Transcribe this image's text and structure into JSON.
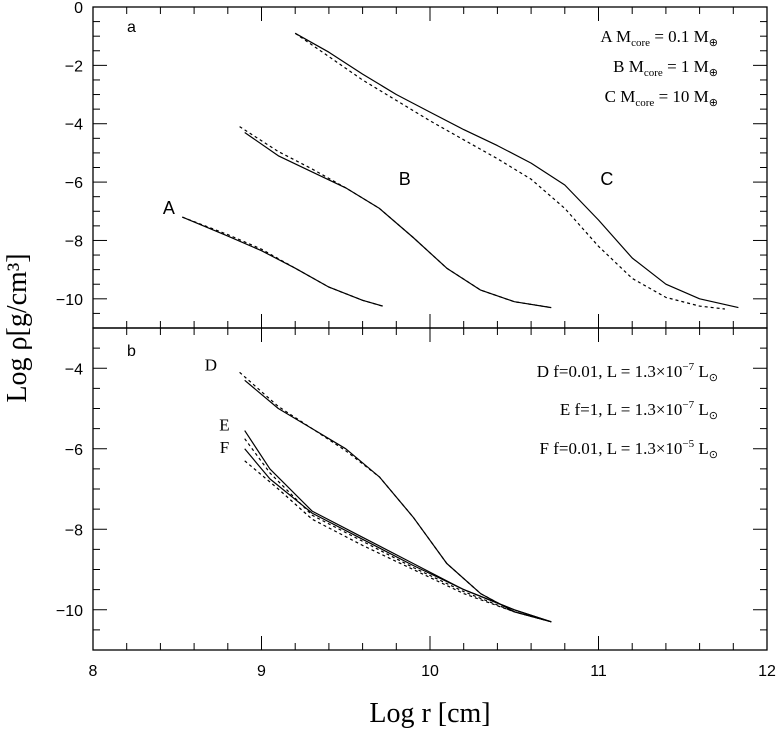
{
  "chart_data": [
    {
      "panel": "a",
      "type": "line",
      "xlabel": "Log r [cm]",
      "ylabel": "Log ρ[g/cm³]",
      "xlim": [
        8,
        12
      ],
      "ylim": [
        -11,
        0
      ],
      "xticks": [
        "8",
        "9",
        "10",
        "11",
        "12"
      ],
      "yticks": [
        "0",
        "−2",
        "−4",
        "−6",
        "−8",
        "−10"
      ],
      "legend_lines": [
        {
          "letter": "A",
          "name": "M",
          "sub": "core",
          "rest": "= 0.1 M",
          "sym": "⊕"
        },
        {
          "letter": "B",
          "name": "M",
          "sub": "core",
          "rest": "= 1 M",
          "sym": "⊕"
        },
        {
          "letter": "C",
          "name": "M",
          "sub": "core",
          "rest": "= 10 M",
          "sym": "⊕"
        }
      ],
      "curve_labels": [
        {
          "text": "A",
          "x": 8.45,
          "y": -7.1
        },
        {
          "text": "B",
          "x": 9.85,
          "y": -6.1
        },
        {
          "text": "C",
          "x": 11.05,
          "y": -6.1
        }
      ],
      "series": [
        {
          "label": "A",
          "style": "solid",
          "x": [
            8.53,
            8.8,
            9.0,
            9.2,
            9.4,
            9.6,
            9.72
          ],
          "y": [
            -7.2,
            -7.85,
            -8.35,
            -8.95,
            -9.6,
            -10.05,
            -10.25
          ]
        },
        {
          "label": "A",
          "style": "dotted",
          "x": [
            8.53,
            8.8,
            9.0,
            9.2,
            9.4,
            9.6,
            9.73
          ],
          "y": [
            -7.2,
            -7.8,
            -8.3,
            -8.95,
            -9.6,
            -10.05,
            -10.27
          ]
        },
        {
          "label": "B",
          "style": "solid",
          "x": [
            8.9,
            9.1,
            9.3,
            9.5,
            9.7,
            9.9,
            10.1,
            10.3,
            10.5,
            10.72
          ],
          "y": [
            -4.3,
            -5.1,
            -5.65,
            -6.2,
            -6.9,
            -7.9,
            -8.95,
            -9.7,
            -10.1,
            -10.3
          ]
        },
        {
          "label": "B",
          "style": "dotted",
          "x": [
            8.87,
            9.1,
            9.3,
            9.5,
            9.7,
            9.9,
            10.1,
            10.3,
            10.5,
            10.72
          ],
          "y": [
            -4.1,
            -4.95,
            -5.55,
            -6.2,
            -6.9,
            -7.9,
            -8.95,
            -9.7,
            -10.1,
            -10.3
          ]
        },
        {
          "label": "C",
          "style": "solid",
          "x": [
            9.2,
            9.4,
            9.6,
            9.8,
            10.0,
            10.2,
            10.4,
            10.6,
            10.8,
            11.0,
            11.2,
            11.4,
            11.6,
            11.83
          ],
          "y": [
            -0.9,
            -1.55,
            -2.3,
            -3.0,
            -3.6,
            -4.2,
            -4.75,
            -5.35,
            -6.1,
            -7.3,
            -8.6,
            -9.5,
            -10.0,
            -10.3
          ]
        },
        {
          "label": "C",
          "style": "dotted",
          "x": [
            9.2,
            9.4,
            9.6,
            9.8,
            10.0,
            10.2,
            10.4,
            10.6,
            10.8,
            11.0,
            11.2,
            11.4,
            11.6,
            11.75
          ],
          "y": [
            -0.9,
            -1.7,
            -2.5,
            -3.2,
            -3.9,
            -4.55,
            -5.2,
            -5.9,
            -6.9,
            -8.2,
            -9.3,
            -9.95,
            -10.25,
            -10.35
          ]
        }
      ]
    },
    {
      "panel": "b",
      "type": "line",
      "xlim": [
        8,
        12
      ],
      "ylim": [
        -11,
        -3
      ],
      "xticks": [
        "8",
        "9",
        "10",
        "11",
        "12"
      ],
      "yticks": [
        "−4",
        "−6",
        "−8",
        "−10"
      ],
      "legend_lines": [
        {
          "letter": "D",
          "text": "f=0.01, L = 1.3×10",
          "exp": "−7",
          "unit": "L",
          "sym": "⊙"
        },
        {
          "letter": "E",
          "text": "f=1, L = 1.3×10",
          "exp": "−7",
          "unit": "L",
          "sym": "⊙"
        },
        {
          "letter": "F",
          "text": "f=0.01, L = 1.3×10",
          "exp": "−5",
          "unit": "L",
          "sym": "⊙"
        }
      ],
      "curve_labels": [
        {
          "text": "D",
          "x": 8.7,
          "y": -4.05
        },
        {
          "text": "E",
          "x": 8.78,
          "y": -5.55
        },
        {
          "text": "F",
          "x": 8.78,
          "y": -6.1
        }
      ],
      "series": [
        {
          "label": "D",
          "style": "solid",
          "x": [
            8.9,
            9.1,
            9.3,
            9.5,
            9.7,
            9.9,
            10.1,
            10.3,
            10.5,
            10.72
          ],
          "y": [
            -4.3,
            -5.0,
            -5.5,
            -6.0,
            -6.7,
            -7.7,
            -8.85,
            -9.6,
            -10.05,
            -10.3
          ]
        },
        {
          "label": "D",
          "style": "dotted",
          "x": [
            8.87,
            9.1,
            9.3,
            9.5,
            9.7,
            9.9,
            10.1,
            10.3,
            10.5,
            10.72
          ],
          "y": [
            -4.1,
            -4.95,
            -5.5,
            -6.05,
            -6.7,
            -7.7,
            -8.85,
            -9.6,
            -10.05,
            -10.3
          ]
        },
        {
          "label": "E",
          "style": "solid",
          "x": [
            8.9,
            9.05,
            9.3,
            9.6,
            9.9,
            10.2,
            10.5,
            10.72
          ],
          "y": [
            -5.55,
            -6.5,
            -7.55,
            -8.2,
            -8.85,
            -9.5,
            -10.0,
            -10.3
          ]
        },
        {
          "label": "E",
          "style": "dotted",
          "x": [
            8.9,
            9.05,
            9.3,
            9.6,
            9.9,
            10.2,
            10.5,
            10.72
          ],
          "y": [
            -5.75,
            -6.6,
            -7.65,
            -8.3,
            -8.95,
            -9.55,
            -10.05,
            -10.3
          ]
        },
        {
          "label": "F",
          "style": "solid",
          "x": [
            8.9,
            9.05,
            9.3,
            9.6,
            9.9,
            10.2,
            10.5,
            10.72
          ],
          "y": [
            -6.0,
            -6.75,
            -7.6,
            -8.25,
            -8.9,
            -9.5,
            -10.0,
            -10.3
          ]
        },
        {
          "label": "F",
          "style": "dotted",
          "x": [
            8.9,
            9.1,
            9.3,
            9.6,
            9.9,
            10.2,
            10.5,
            10.72
          ],
          "y": [
            -6.3,
            -7.0,
            -7.75,
            -8.4,
            -9.0,
            -9.6,
            -10.05,
            -10.3
          ]
        }
      ]
    }
  ]
}
